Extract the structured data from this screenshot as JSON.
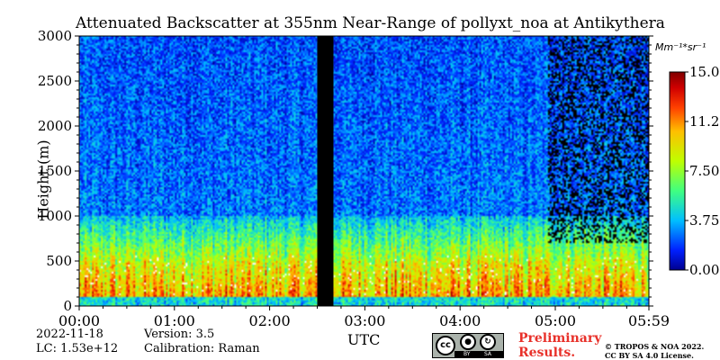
{
  "chart_data": {
    "type": "heatmap",
    "title": "Attenuated Backscatter at 355nm Near-Range of pollyxt_noa at Antikythera",
    "xlabel": "UTC",
    "ylabel": "Height (m)",
    "x_tick_labels": [
      "00:00",
      "01:00",
      "02:00",
      "03:00",
      "04:00",
      "05:00",
      "05:59"
    ],
    "x_range_hours": [
      0,
      5.983
    ],
    "y_ticks": [
      0,
      500,
      1000,
      1500,
      2000,
      2500,
      3000
    ],
    "ylim": [
      0,
      3000
    ],
    "colorbar": {
      "unit_label": "Mm⁻¹*sr⁻¹",
      "ticks": [
        "0.00",
        "3.75",
        "7.50",
        "11.25",
        "15.00"
      ],
      "range": [
        0,
        15
      ],
      "colormap": [
        "#00008f",
        "#0020ff",
        "#00bfff",
        "#40ff80",
        "#bfff00",
        "#ffbf00",
        "#ff4000",
        "#cf0000",
        "#800000"
      ]
    },
    "data_gaps": [
      {
        "start_hours": 2.5,
        "end_hours": 2.67,
        "color": "#000000"
      }
    ],
    "profile_features": {
      "near_surface_max_height_m": 100,
      "saturated_layer_top_m": 500,
      "aerosol_layer_top_m": 1000,
      "background_signal": "low (blue) above about 1000 m, noisy to about 3000 m",
      "saturated_over_range_patches": "white patches between about 100 and 600 m",
      "low_signal_region": "after about 04:55 UTC above about 1000 m"
    }
  },
  "footer": {
    "date": "2022-11-18",
    "lc": "LC: 1.53e+12",
    "version": "Version: 3.5",
    "calibration": "Calibration: Raman",
    "preliminary_line1": "Preliminary",
    "preliminary_line2": "Results.",
    "copyright_line1": "© TROPOS & NOA 2022.",
    "copyright_line2": "CC BY SA 4.0 License.",
    "cc_badge": {
      "cc": "cc",
      "by": "BY",
      "sa": "SA"
    }
  }
}
